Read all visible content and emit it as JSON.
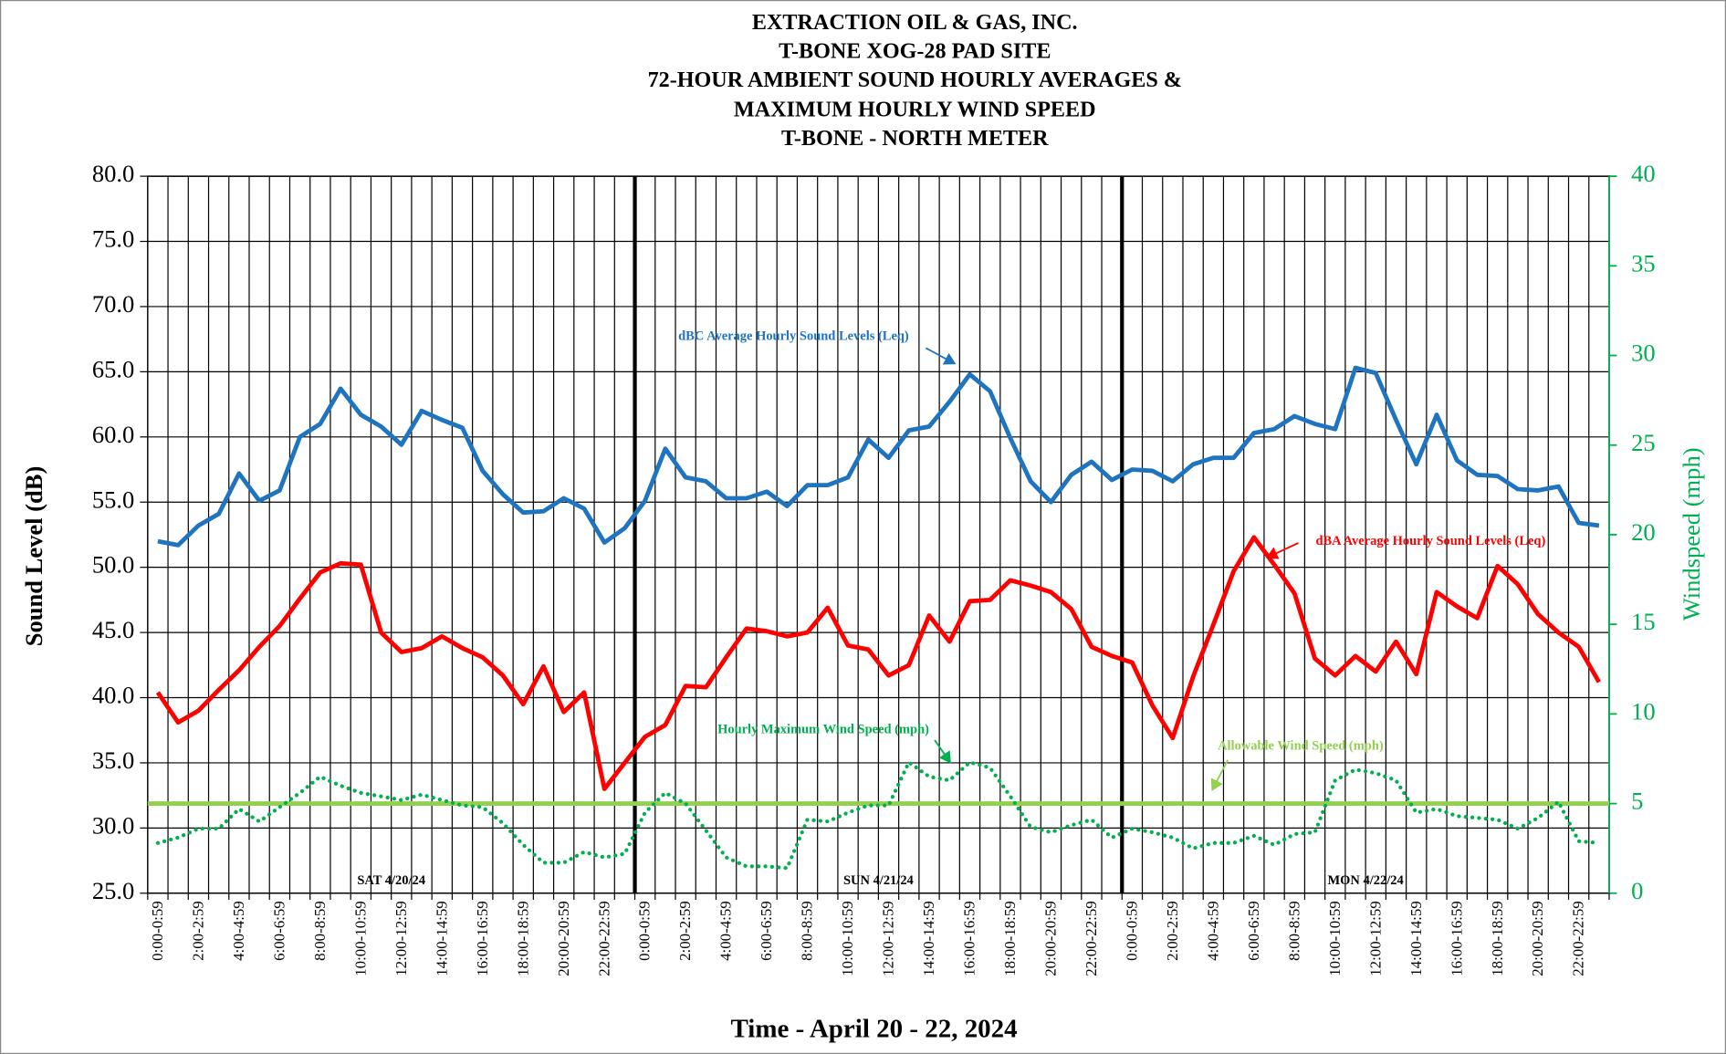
{
  "chart_data": {
    "type": "line",
    "title": [
      "EXTRACTION  OIL & GAS, INC.",
      "T-BONE XOG-28 PAD SITE",
      "72-HOUR AMBIENT SOUND HOURLY AVERAGES &",
      "MAXIMUM  HOURLY WIND SPEED",
      "T-BONE - NORTH METER"
    ],
    "x_label": "Time - April 20 - 22, 2024",
    "y_label": "Sound Level (dB)",
    "y2_label": "Windspeed (mph)",
    "categories": [
      "0:00-0:59",
      null,
      "2:00-2:59",
      null,
      "4:00-4:59",
      null,
      "6:00-6:59",
      null,
      "8:00-8:59",
      null,
      "10:00-10:59",
      null,
      "12:00-12:59",
      null,
      "14:00-14:59",
      null,
      "16:00-16:59",
      null,
      "18:00-18:59",
      null,
      "20:00-20:59",
      null,
      "22:00-22:59",
      null,
      "0:00-0:59",
      null,
      "2:00-2:59",
      null,
      "4:00-4:59",
      null,
      "6:00-6:59",
      null,
      "8:00-8:59",
      null,
      "10:00-10:59",
      null,
      "12:00-12:59",
      null,
      "14:00-14:59",
      null,
      "16:00-16:59",
      null,
      "18:00-18:59",
      null,
      "20:00-20:59",
      null,
      "22:00-22:59",
      null,
      "0:00-0:59",
      null,
      "2:00-2:59",
      null,
      "4:00-4:59",
      null,
      "6:00-6:59",
      null,
      "8:00-8:59",
      null,
      "10:00-10:59",
      null,
      "12:00-12:59",
      null,
      "14:00-14:59",
      null,
      "16:00-16:59",
      null,
      "18:00-18:59",
      null,
      "20:00-20:59",
      null,
      "22:00-22:59",
      null
    ],
    "day_labels": [
      "SAT 4/20/24",
      "SUN 4/21/24",
      "MON 4/22/24"
    ],
    "ylim": [
      25,
      80
    ],
    "yticks": [
      {
        "value": 25,
        "label": "25.0"
      },
      {
        "value": 30,
        "label": "30.0"
      },
      {
        "value": 35,
        "label": "35.0"
      },
      {
        "value": 40,
        "label": "40.0"
      },
      {
        "value": 45,
        "label": "45.0"
      },
      {
        "value": 50,
        "label": "50.0"
      },
      {
        "value": 55,
        "label": "55.0"
      },
      {
        "value": 60,
        "label": "60.0"
      },
      {
        "value": 65,
        "label": "65.0"
      },
      {
        "value": 70,
        "label": "70.0"
      },
      {
        "value": 75,
        "label": "75.0"
      },
      {
        "value": 80,
        "label": "80.0"
      }
    ],
    "y2lim": [
      0,
      40
    ],
    "y2ticks": [
      0,
      5,
      10,
      15,
      20,
      25,
      30,
      35,
      40
    ],
    "y2_color": "#00b050",
    "grid": true,
    "series": [
      {
        "name": "dBC Average Hourly Sound Levels (Leq)",
        "color": "#1f74c0",
        "style": "solid",
        "values": [
          52.0,
          51.7,
          53.2,
          54.1,
          57.2,
          55.1,
          55.9,
          60.0,
          61.0,
          63.7,
          61.7,
          60.8,
          59.4,
          62.0,
          61.3,
          60.7,
          57.4,
          55.6,
          54.2,
          54.3,
          55.3,
          54.5,
          51.9,
          53.0,
          55.1,
          59.1,
          56.9,
          56.6,
          55.3,
          55.3,
          55.8,
          54.7,
          56.3,
          56.3,
          56.9,
          59.8,
          58.4,
          60.5,
          60.8,
          62.7,
          64.8,
          63.5,
          59.9,
          56.6,
          55.0,
          57.1,
          58.1,
          56.7,
          57.5,
          57.4,
          56.6,
          57.9,
          58.4,
          58.4,
          60.3,
          60.6,
          61.6,
          61.0,
          60.6,
          65.3,
          64.9,
          61.3,
          57.9,
          61.7,
          58.2,
          57.1,
          57.0,
          56.0,
          55.9,
          56.2,
          53.4,
          53.2
        ]
      },
      {
        "name": "dBA Average Hourly Sound Levels (Leq)",
        "color": "#ff0000",
        "style": "solid",
        "values": [
          40.4,
          38.1,
          39.0,
          40.6,
          42.1,
          43.9,
          45.5,
          47.6,
          49.6,
          50.3,
          50.2,
          45.0,
          43.5,
          43.8,
          44.7,
          43.8,
          43.1,
          41.7,
          39.5,
          42.4,
          38.9,
          40.4,
          33.0,
          35.0,
          37.0,
          37.9,
          40.9,
          40.8,
          43.1,
          45.3,
          45.1,
          44.7,
          45.0,
          46.9,
          44.0,
          43.7,
          41.7,
          42.5,
          46.3,
          44.3,
          47.4,
          47.5,
          49.0,
          48.6,
          48.1,
          46.8,
          43.9,
          43.2,
          42.7,
          39.4,
          36.9,
          41.6,
          45.6,
          49.7,
          52.3,
          50.2,
          48.0,
          43.0,
          41.7,
          43.2,
          42.0,
          44.3,
          41.8,
          48.1,
          47.0,
          46.1,
          50.1,
          48.7,
          46.4,
          45.0,
          43.9,
          41.2
        ]
      },
      {
        "name": "Hourly Maximum  Wind Speed (mph)",
        "color": "#00b050",
        "style": "dotted",
        "axis": "y2",
        "values": [
          2.8,
          3.1,
          3.6,
          3.6,
          4.7,
          4.0,
          4.8,
          5.6,
          6.5,
          6.0,
          5.6,
          5.4,
          5.2,
          5.5,
          5.2,
          4.9,
          4.8,
          3.9,
          2.7,
          1.7,
          1.7,
          2.3,
          2.0,
          2.2,
          4.5,
          5.6,
          5.0,
          3.5,
          2.0,
          1.5,
          1.5,
          1.4,
          4.1,
          4.0,
          4.5,
          4.9,
          4.9,
          7.3,
          6.5,
          6.3,
          7.3,
          7.0,
          5.4,
          3.7,
          3.4,
          3.8,
          4.1,
          3.1,
          3.6,
          3.4,
          3.1,
          2.5,
          2.8,
          2.8,
          3.2,
          2.7,
          3.3,
          3.4,
          6.3,
          6.9,
          6.7,
          6.3,
          4.5,
          4.7,
          4.3,
          4.2,
          4.1,
          3.6,
          4.2,
          5.1,
          2.9,
          2.8
        ]
      }
    ],
    "reference_line": {
      "name": "Allowable Wind Speed (mph)",
      "value": 5,
      "axis": "y2",
      "color": "#92d050"
    }
  }
}
